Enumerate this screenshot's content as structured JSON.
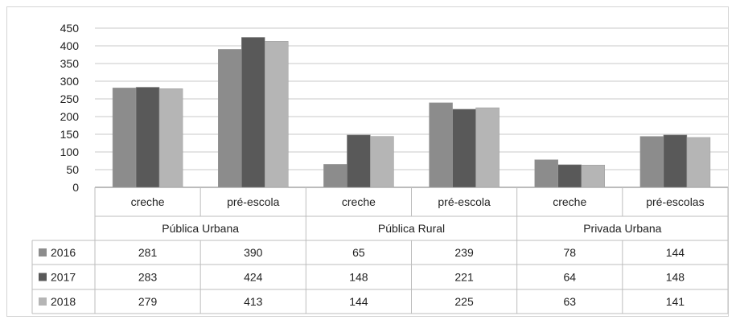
{
  "chart_data": {
    "type": "bar",
    "title": "",
    "xlabel": "",
    "ylabel": "",
    "ylim": [
      0,
      450
    ],
    "yticks": [
      "450",
      "400",
      "350",
      "300",
      "250",
      "200",
      "150",
      "100",
      "50",
      "0"
    ],
    "grid": true,
    "legend": "data-table-left",
    "groups": [
      {
        "label": "Pública Urbana",
        "categories": [
          "creche",
          "pré-escola"
        ]
      },
      {
        "label": "Pública Rural",
        "categories": [
          "creche",
          "pré-escola"
        ]
      },
      {
        "label": "Privada Urbana",
        "categories": [
          "creche",
          "pré-escolas"
        ]
      }
    ],
    "categories": [
      "creche",
      "pré-escola",
      "creche",
      "pré-escola",
      "creche",
      "pré-escolas"
    ],
    "series": [
      {
        "name": "2016",
        "color": "#8c8c8c",
        "values": [
          281,
          390,
          65,
          239,
          78,
          144
        ],
        "labels": [
          "281",
          "390",
          "65",
          "239",
          "78",
          "144"
        ]
      },
      {
        "name": "2017",
        "color": "#595959",
        "values": [
          283,
          424,
          148,
          221,
          64,
          148
        ],
        "labels": [
          "283",
          "424",
          "148",
          "221",
          "64",
          "148"
        ]
      },
      {
        "name": "2018",
        "color": "#b5b5b5",
        "values": [
          279,
          413,
          144,
          225,
          63,
          141
        ],
        "labels": [
          "279",
          "413",
          "144",
          "225",
          "63",
          "141"
        ]
      }
    ]
  }
}
